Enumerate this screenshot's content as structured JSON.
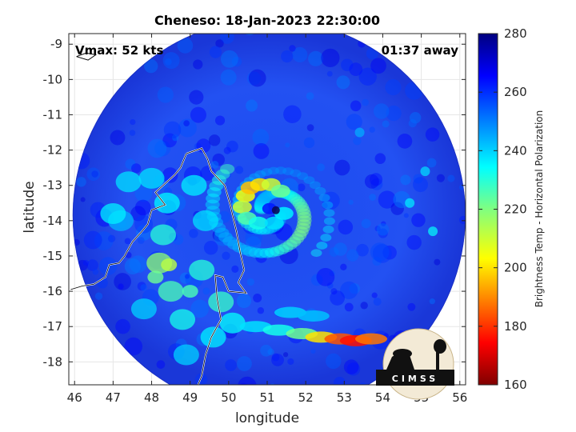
{
  "chart_data": {
    "type": "heatmap",
    "title": "Cheneso: 18-Jan-2023 22:30:00",
    "xlabel": "longitude",
    "ylabel": "latitude",
    "xlim": [
      45.85,
      56.15
    ],
    "ylim": [
      -18.65,
      -8.7
    ],
    "xticks": [
      46,
      47,
      48,
      49,
      50,
      51,
      52,
      53,
      54,
      55,
      56
    ],
    "yticks": [
      -9,
      -10,
      -11,
      -12,
      -13,
      -14,
      -15,
      -16,
      -17,
      -18
    ],
    "x_tick_labels": [
      "46",
      "47",
      "48",
      "49",
      "50",
      "51",
      "52",
      "53",
      "54",
      "55",
      "56"
    ],
    "y_tick_labels": [
      "-9",
      "-10",
      "-11",
      "-12",
      "-13",
      "-14",
      "-15",
      "-16",
      "-17",
      "-18"
    ],
    "grid": true,
    "annotations": {
      "left": "Vmax: 52 kts",
      "right": "01:37 away"
    },
    "storm_center": {
      "lon": 51.1,
      "lat": -13.75
    },
    "swath": {
      "center_lon": 51.05,
      "center_lat": -13.85,
      "radius_deg": 5.1
    },
    "colorbar": {
      "label": "Brightness Temp - Horizontal Polarization",
      "min": 160,
      "max": 280,
      "ticks": [
        160,
        180,
        200,
        220,
        240,
        260,
        280
      ],
      "tick_labels": [
        "160",
        "180",
        "200",
        "220",
        "240",
        "260",
        "280"
      ],
      "colormap": "jet"
    },
    "logo_text": "CIMSS",
    "features": [
      {
        "kind": "eyewall-band",
        "lon": 51.0,
        "lat": -13.4,
        "value": 205
      },
      {
        "kind": "outer-rainband",
        "lon": 53.0,
        "lat": -17.3,
        "value": 180
      },
      {
        "kind": "land-mass",
        "lon": 48.5,
        "lat": -14.8,
        "value": 235
      }
    ]
  },
  "colors": {
    "background_cold": "#1f3fe0",
    "coastline": "#ffffff",
    "axes_border": "#262626"
  }
}
